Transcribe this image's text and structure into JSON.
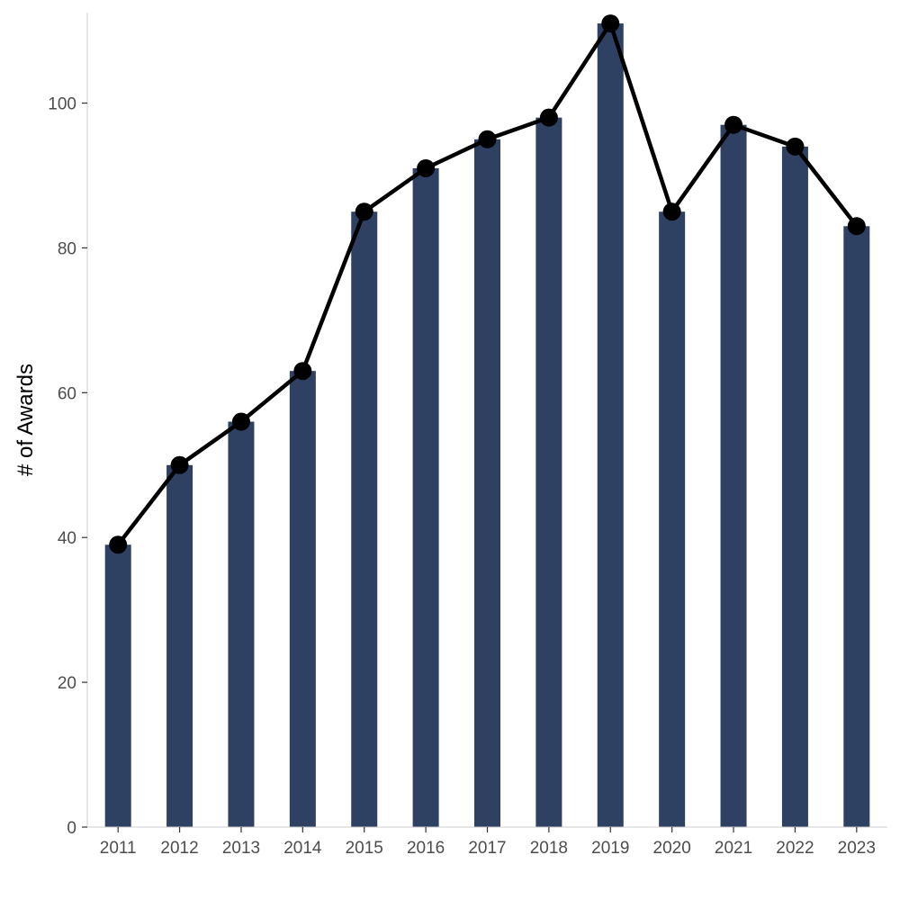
{
  "chart_data": {
    "type": "bar",
    "title": "",
    "xlabel": "",
    "ylabel": "# of Awards",
    "categories": [
      "2011",
      "2012",
      "2013",
      "2014",
      "2015",
      "2016",
      "2017",
      "2018",
      "2019",
      "2020",
      "2021",
      "2022",
      "2023"
    ],
    "values": [
      39,
      50,
      56,
      63,
      85,
      91,
      95,
      98,
      111,
      85,
      97,
      94,
      83
    ],
    "line_values": [
      39,
      50,
      56,
      63,
      85,
      91,
      95,
      98,
      111,
      85,
      97,
      94,
      83
    ],
    "ylim": [
      0,
      112.5
    ],
    "yticks": [
      0,
      20,
      40,
      60,
      80,
      100
    ],
    "grid": false,
    "legend": "none",
    "colors": {
      "bar": "#2e4163",
      "line": "#000000",
      "point": "#000000",
      "axis": "#cccccc",
      "tick_text": "#4d4d4d"
    }
  }
}
